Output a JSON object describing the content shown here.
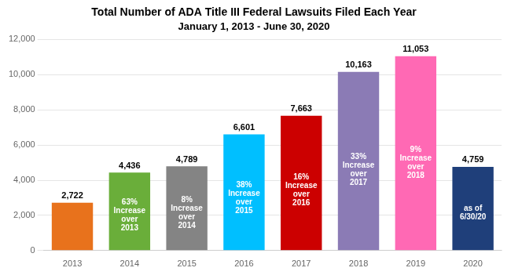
{
  "chart_data": {
    "type": "bar",
    "title": "Total Number of ADA Title III Federal Lawsuits Filed Each Year",
    "subtitle": "January 1, 2013 - June 30, 2020",
    "categories": [
      "2013",
      "2014",
      "2015",
      "2016",
      "2017",
      "2018",
      "2019",
      "2020"
    ],
    "values": [
      2722,
      4436,
      4789,
      6601,
      7663,
      10163,
      11053,
      4759
    ],
    "value_labels": [
      "2,722",
      "4,436",
      "4,789",
      "6,601",
      "7,663",
      "10,163",
      "11,053",
      "4,759"
    ],
    "colors": [
      "#E8721C",
      "#6AAE3A",
      "#848484",
      "#00BFFF",
      "#CC0000",
      "#8B7BB5",
      "#FF69B4",
      "#1F3F7A"
    ],
    "annotations": [
      {
        "category": "2014",
        "text": "63%\nIncrease\nover\n2013"
      },
      {
        "category": "2015",
        "text": "8%\nIncrease\nover\n2014"
      },
      {
        "category": "2016",
        "text": "38%\nIncrease\nover\n2015"
      },
      {
        "category": "2017",
        "text": "16%\nIncrease\nover\n2016"
      },
      {
        "category": "2018",
        "text": "33%\nIncrease\nover\n2017"
      },
      {
        "category": "2019",
        "text": "9%\nIncrease\nover\n2018"
      },
      {
        "category": "2020",
        "text": "as of\n6/30/20"
      }
    ],
    "ylim": [
      0,
      12000
    ],
    "yticks": [
      0,
      {
        "value": 2000,
        "label": "2,000"
      },
      {
        "value": 4000,
        "label": "4,000"
      },
      {
        "value": 6000,
        "label": "6,000"
      },
      {
        "value": 8000,
        "label": "8,000"
      },
      {
        "value": 10000,
        "label": "10,000"
      },
      {
        "value": 12000,
        "label": "12,000"
      }
    ],
    "grid": true,
    "data_labels": true
  }
}
